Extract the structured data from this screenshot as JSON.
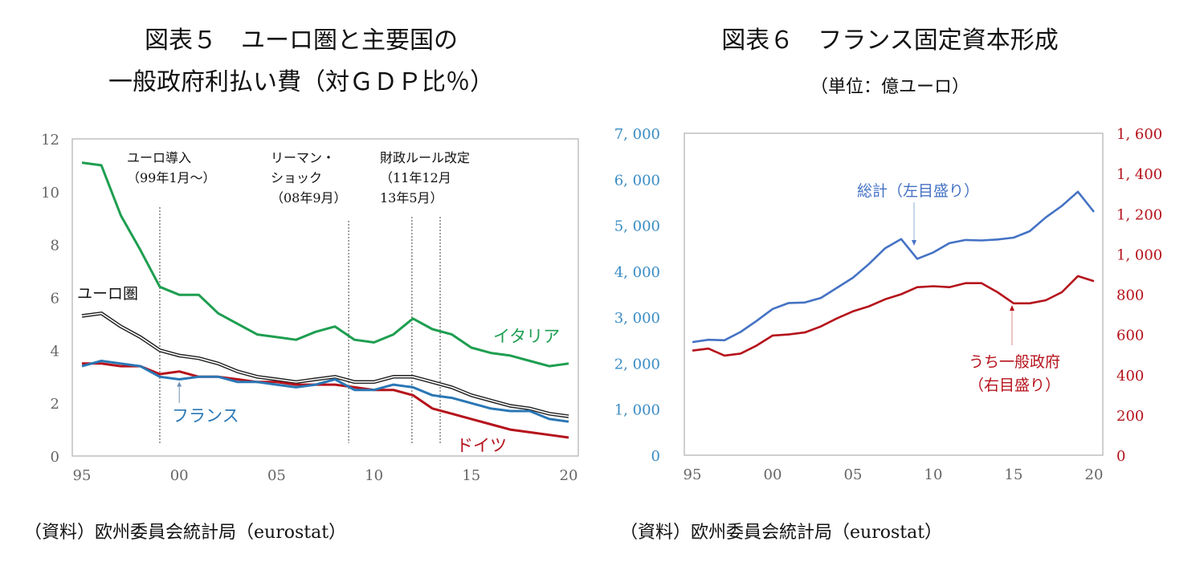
{
  "left": {
    "title_line1": "図表５　ユーロ圏と主要国の",
    "title_line2": "一般政府利払い費（対ＧＤＰ比％）",
    "source": "（資料）欧州委員会統計局（eurostat）"
  },
  "right": {
    "title_line1": "図表６　フランス固定資本形成",
    "subtitle": "（単位：億ユーロ）",
    "source": "（資料）欧州委員会統計局（eurostat）"
  },
  "chart_data": [
    {
      "type": "line",
      "title": "図表５　ユーロ圏と主要国の一般政府利払い費（対ＧＤＰ比％）",
      "xlabel": "",
      "ylabel": "",
      "x": [
        1995,
        1996,
        1997,
        1998,
        1999,
        2000,
        2001,
        2002,
        2003,
        2004,
        2005,
        2006,
        2007,
        2008,
        2009,
        2010,
        2011,
        2012,
        2013,
        2014,
        2015,
        2016,
        2017,
        2018,
        2019,
        2020
      ],
      "xticks": [
        1995,
        2000,
        2005,
        2010,
        2015,
        2020
      ],
      "xtick_labels": [
        "95",
        "00",
        "05",
        "10",
        "15",
        "20"
      ],
      "ylim": [
        0,
        12
      ],
      "yticks": [
        0,
        2,
        4,
        6,
        8,
        10,
        12
      ],
      "ytick_labels": [
        "0",
        "2",
        "4",
        "6",
        "8",
        "10",
        "12"
      ],
      "grid": false,
      "series": [
        {
          "name": "イタリア",
          "color": "#1e9e50",
          "label": "イタリア",
          "values": [
            11.1,
            11.0,
            9.1,
            7.8,
            6.4,
            6.1,
            6.1,
            5.4,
            5.0,
            4.6,
            4.5,
            4.4,
            4.7,
            4.9,
            4.4,
            4.3,
            4.6,
            5.2,
            4.8,
            4.6,
            4.1,
            3.9,
            3.8,
            3.6,
            3.4,
            3.5
          ]
        },
        {
          "name": "ユーロ圏",
          "color": "#222222",
          "style": "double",
          "label": "ユーロ圏",
          "values": [
            5.3,
            5.4,
            4.9,
            4.5,
            4.0,
            3.8,
            3.7,
            3.5,
            3.2,
            3.0,
            2.9,
            2.8,
            2.9,
            3.0,
            2.8,
            2.8,
            3.0,
            3.0,
            2.8,
            2.6,
            2.3,
            2.1,
            1.9,
            1.8,
            1.6,
            1.5
          ]
        },
        {
          "name": "ドイツ",
          "color": "#b5121b",
          "label": "ドイツ",
          "values": [
            3.5,
            3.5,
            3.4,
            3.4,
            3.1,
            3.2,
            3.0,
            3.0,
            2.9,
            2.8,
            2.8,
            2.7,
            2.7,
            2.7,
            2.6,
            2.5,
            2.5,
            2.3,
            1.8,
            1.6,
            1.4,
            1.2,
            1.0,
            0.9,
            0.8,
            0.7
          ]
        },
        {
          "name": "フランス",
          "color": "#2a77b5",
          "label": "フランス",
          "values": [
            3.4,
            3.6,
            3.5,
            3.4,
            3.0,
            2.9,
            3.0,
            3.0,
            2.8,
            2.8,
            2.7,
            2.6,
            2.7,
            2.9,
            2.5,
            2.5,
            2.7,
            2.6,
            2.3,
            2.2,
            2.0,
            1.8,
            1.7,
            1.7,
            1.4,
            1.3
          ]
        }
      ],
      "annotations": [
        {
          "lines": [
            "ユーロ導入",
            "（99年1月～）"
          ],
          "x": 1999
        },
        {
          "lines": [
            "リーマン・",
            "ショック",
            "（08年9月）"
          ],
          "x": 2008.7
        },
        {
          "lines": [
            "財政ルール改定",
            "（11年12月",
            "13年5月）"
          ],
          "x": 2011.95
        },
        {
          "lines": [
            ""
          ],
          "x": 2013.4
        }
      ]
    },
    {
      "type": "line",
      "title": "図表６　フランス固定資本形成",
      "subtitle": "（単位：億ユーロ）",
      "x": [
        1995,
        1996,
        1997,
        1998,
        1999,
        2000,
        2001,
        2002,
        2003,
        2004,
        2005,
        2006,
        2007,
        2008,
        2009,
        2010,
        2011,
        2012,
        2013,
        2014,
        2015,
        2016,
        2017,
        2018,
        2019,
        2020
      ],
      "xticks": [
        1995,
        2000,
        2005,
        2010,
        2015,
        2020
      ],
      "xtick_labels": [
        "95",
        "00",
        "05",
        "10",
        "15",
        "20"
      ],
      "ylim_left": [
        0,
        7000
      ],
      "yticks_left": [
        0,
        1000,
        2000,
        3000,
        4000,
        5000,
        6000,
        7000
      ],
      "ytick_labels_left": [
        "0",
        "1, 000",
        "2, 000",
        "3, 000",
        "4, 000",
        "5, 000",
        "6, 000",
        "7, 000"
      ],
      "ylim_right": [
        0,
        1600
      ],
      "yticks_right": [
        0,
        200,
        400,
        600,
        800,
        1000,
        1200,
        1400,
        1600
      ],
      "ytick_labels_right": [
        "0",
        "200",
        "400",
        "600",
        "800",
        "1, 000",
        "1, 200",
        "1, 400",
        "1, 600"
      ],
      "left_axis_color": "#3a8cc4",
      "right_axis_color": "#b5121b",
      "grid": false,
      "series": [
        {
          "name": "総計（左目盛り）",
          "axis": "left",
          "color": "#4472c4",
          "values": [
            2460,
            2510,
            2500,
            2680,
            2920,
            3180,
            3310,
            3320,
            3420,
            3640,
            3860,
            4160,
            4500,
            4700,
            4270,
            4410,
            4610,
            4680,
            4670,
            4690,
            4730,
            4870,
            5170,
            5420,
            5730,
            5290
          ]
        },
        {
          "name": "うち一般政府（右目盛り）",
          "axis": "right",
          "color": "#b5121b",
          "values": [
            520,
            530,
            495,
            505,
            545,
            595,
            600,
            610,
            640,
            680,
            715,
            740,
            775,
            800,
            835,
            840,
            835,
            855,
            855,
            810,
            755,
            755,
            770,
            810,
            890,
            865
          ]
        }
      ],
      "annotations": [
        {
          "lines": [
            "総計（左目盛り）"
          ],
          "series": "総計（左目盛り）",
          "point_year": 2008.8
        },
        {
          "lines": [
            "うち一般政府",
            "（右目盛り）"
          ],
          "series": "うち一般政府（右目盛り）",
          "point_year": 2014.9
        }
      ]
    }
  ]
}
